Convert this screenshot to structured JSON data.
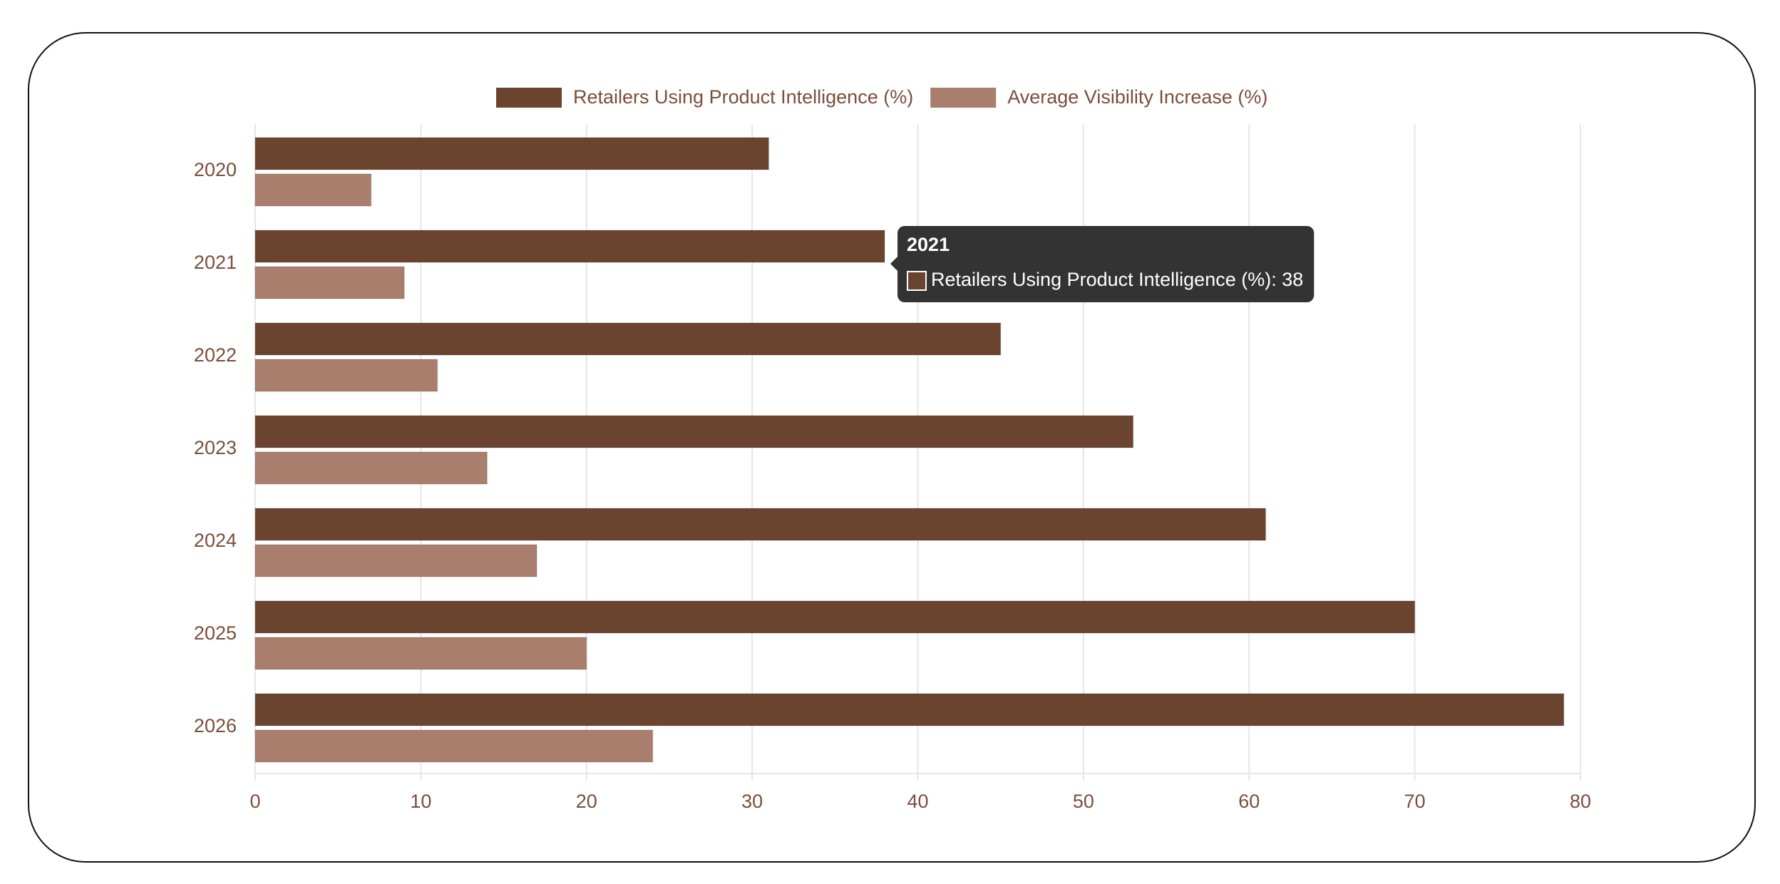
{
  "chart_data": {
    "type": "hbar",
    "categories": [
      "2020",
      "2021",
      "2022",
      "2023",
      "2024",
      "2025",
      "2026"
    ],
    "series": [
      {
        "name": "Retailers Using Product Intelligence (%)",
        "color": "#6b4430",
        "values": [
          31,
          38,
          45,
          53,
          61,
          70,
          79
        ]
      },
      {
        "name": "Average Visibility Increase (%)",
        "color": "#a97e6d",
        "values": [
          7,
          9,
          11,
          14,
          17,
          20,
          24
        ]
      }
    ],
    "xlim": [
      0,
      80
    ],
    "xticks": [
      0,
      10,
      20,
      30,
      40,
      50,
      60,
      70,
      80
    ],
    "grid": true,
    "tooltip": {
      "category": 1,
      "series": 0
    }
  }
}
